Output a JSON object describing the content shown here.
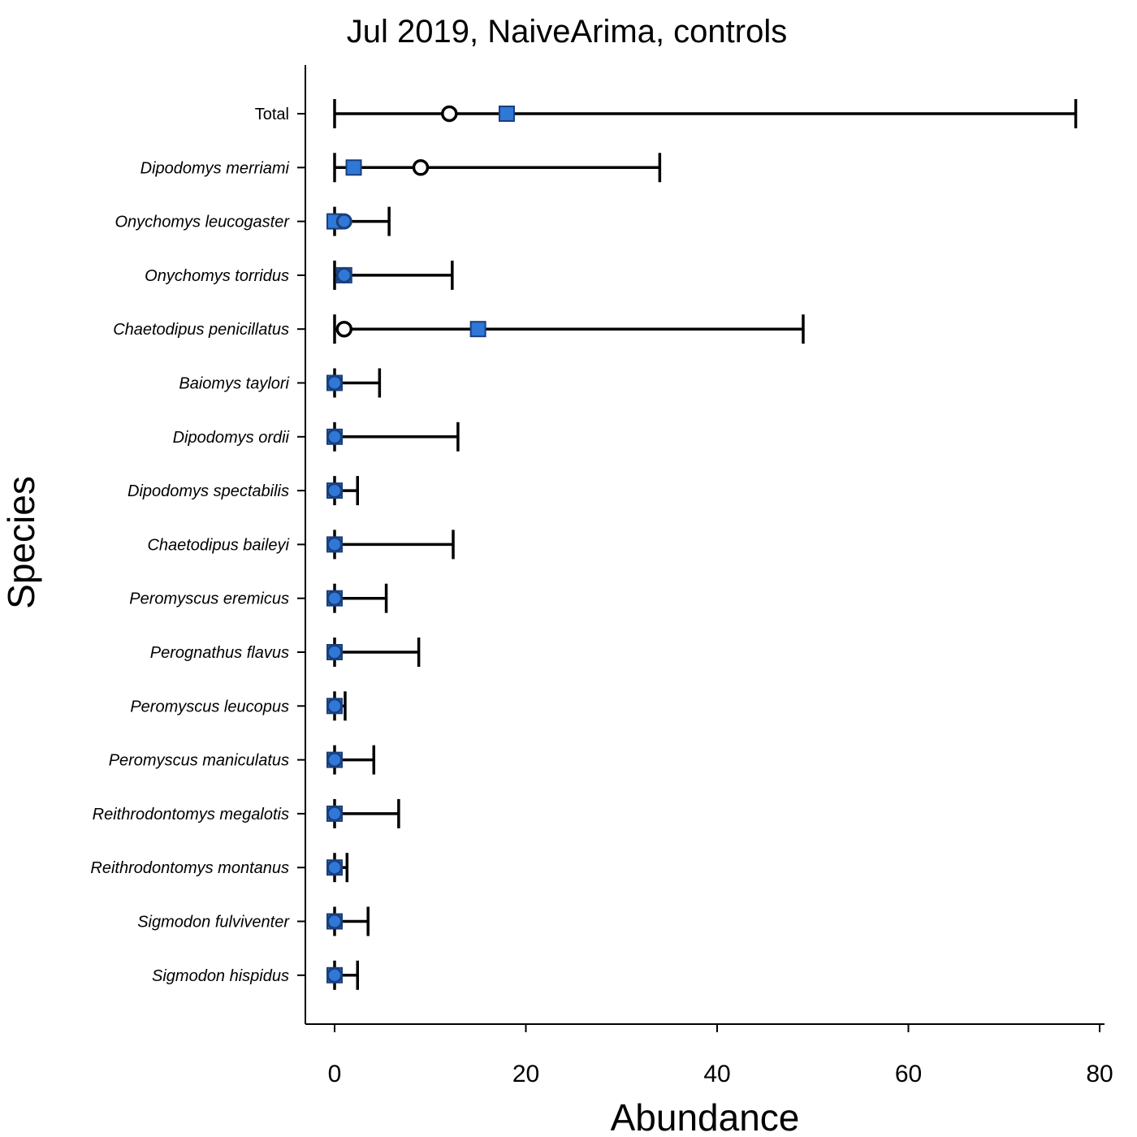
{
  "chart_data": {
    "type": "errorbar",
    "title": "Jul 2019, NaiveArima, controls",
    "xlabel": "Abundance",
    "ylabel": "Species",
    "xlim": [
      -3,
      80
    ],
    "xticks": [
      0,
      20,
      40,
      60,
      80
    ],
    "grid": false,
    "colors": {
      "predicted": "#2f78d8",
      "predicted_edge": "#1a3f7a",
      "interval": "#000000",
      "observed_open": "#ffffff"
    },
    "species": [
      {
        "label": "Total",
        "italic": false,
        "lower": 0,
        "upper": 77.5,
        "predicted": 18,
        "observed": 12
      },
      {
        "label": "Dipodomys merriami",
        "italic": true,
        "lower": 0,
        "upper": 34,
        "predicted": 2,
        "observed": 9
      },
      {
        "label": "Onychomys leucogaster",
        "italic": true,
        "lower": 0,
        "upper": 5.7,
        "predicted": 0,
        "observed": 1
      },
      {
        "label": "Onychomys torridus",
        "italic": true,
        "lower": 0,
        "upper": 12.3,
        "predicted": 1,
        "observed": 1
      },
      {
        "label": "Chaetodipus penicillatus",
        "italic": true,
        "lower": 0,
        "upper": 49,
        "predicted": 15,
        "observed": 1
      },
      {
        "label": "Baiomys taylori",
        "italic": true,
        "lower": 0,
        "upper": 4.7,
        "predicted": 0,
        "observed": 0
      },
      {
        "label": "Dipodomys ordii",
        "italic": true,
        "lower": 0,
        "upper": 12.9,
        "predicted": 0,
        "observed": 0
      },
      {
        "label": "Dipodomys spectabilis",
        "italic": true,
        "lower": 0,
        "upper": 2.4,
        "predicted": 0,
        "observed": 0
      },
      {
        "label": "Chaetodipus baileyi",
        "italic": true,
        "lower": 0,
        "upper": 12.4,
        "predicted": 0,
        "observed": 0
      },
      {
        "label": "Peromyscus eremicus",
        "italic": true,
        "lower": 0,
        "upper": 5.4,
        "predicted": 0,
        "observed": 0
      },
      {
        "label": "Perognathus flavus",
        "italic": true,
        "lower": 0,
        "upper": 8.8,
        "predicted": 0,
        "observed": 0
      },
      {
        "label": "Peromyscus leucopus",
        "italic": true,
        "lower": 0,
        "upper": 1.1,
        "predicted": 0,
        "observed": 0
      },
      {
        "label": "Peromyscus maniculatus",
        "italic": true,
        "lower": 0,
        "upper": 4.1,
        "predicted": 0,
        "observed": 0
      },
      {
        "label": "Reithrodontomys megalotis",
        "italic": true,
        "lower": 0,
        "upper": 6.7,
        "predicted": 0,
        "observed": 0
      },
      {
        "label": "Reithrodontomys montanus",
        "italic": true,
        "lower": 0,
        "upper": 1.3,
        "predicted": 0,
        "observed": 0
      },
      {
        "label": "Sigmodon fulviventer",
        "italic": true,
        "lower": 0,
        "upper": 3.5,
        "predicted": 0,
        "observed": 0
      },
      {
        "label": "Sigmodon hispidus",
        "italic": true,
        "lower": 0,
        "upper": 2.4,
        "predicted": 0,
        "observed": 0
      }
    ]
  }
}
